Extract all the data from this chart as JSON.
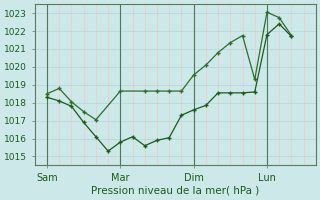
{
  "background_color": "#cce8e8",
  "grid_minor_color": "#f5c8c8",
  "grid_major_color": "#b8d8d8",
  "line_color_dark": "#1a5c1a",
  "xlabel": "Pression niveau de la mer( hPa )",
  "ylim": [
    1014.5,
    1023.5
  ],
  "yticks": [
    1015,
    1016,
    1017,
    1018,
    1019,
    1020,
    1021,
    1022,
    1023
  ],
  "xtick_labels": [
    "Sam",
    "Mar",
    "Dim",
    "Lun"
  ],
  "xtick_positions": [
    0,
    24,
    48,
    72
  ],
  "xlim": [
    -4,
    88
  ],
  "vline_major": [
    0,
    24,
    48,
    72
  ],
  "series1_x": [
    0,
    4,
    8,
    12,
    16,
    20,
    24,
    28,
    32,
    36,
    40,
    44,
    48,
    52,
    56,
    60,
    64,
    68,
    72,
    76,
    80
  ],
  "series1_y": [
    1018.3,
    1018.1,
    1017.8,
    1016.9,
    1016.1,
    1015.3,
    1015.8,
    1016.1,
    1015.6,
    1015.9,
    1016.05,
    1017.3,
    1017.6,
    1017.85,
    1018.55,
    1018.55,
    1018.55,
    1018.6,
    1021.8,
    1022.4,
    1021.7
  ],
  "series2_x": [
    0,
    4,
    8,
    12,
    16,
    24,
    32,
    36,
    40,
    44,
    48,
    52,
    56,
    60,
    64,
    68,
    72,
    76,
    80
  ],
  "series2_y": [
    1018.5,
    1018.8,
    1018.05,
    1017.5,
    1017.05,
    1018.65,
    1018.65,
    1018.65,
    1018.65,
    1018.65,
    1019.55,
    1020.1,
    1020.8,
    1021.35,
    1021.75,
    1019.3,
    1023.05,
    1022.75,
    1021.75
  ]
}
